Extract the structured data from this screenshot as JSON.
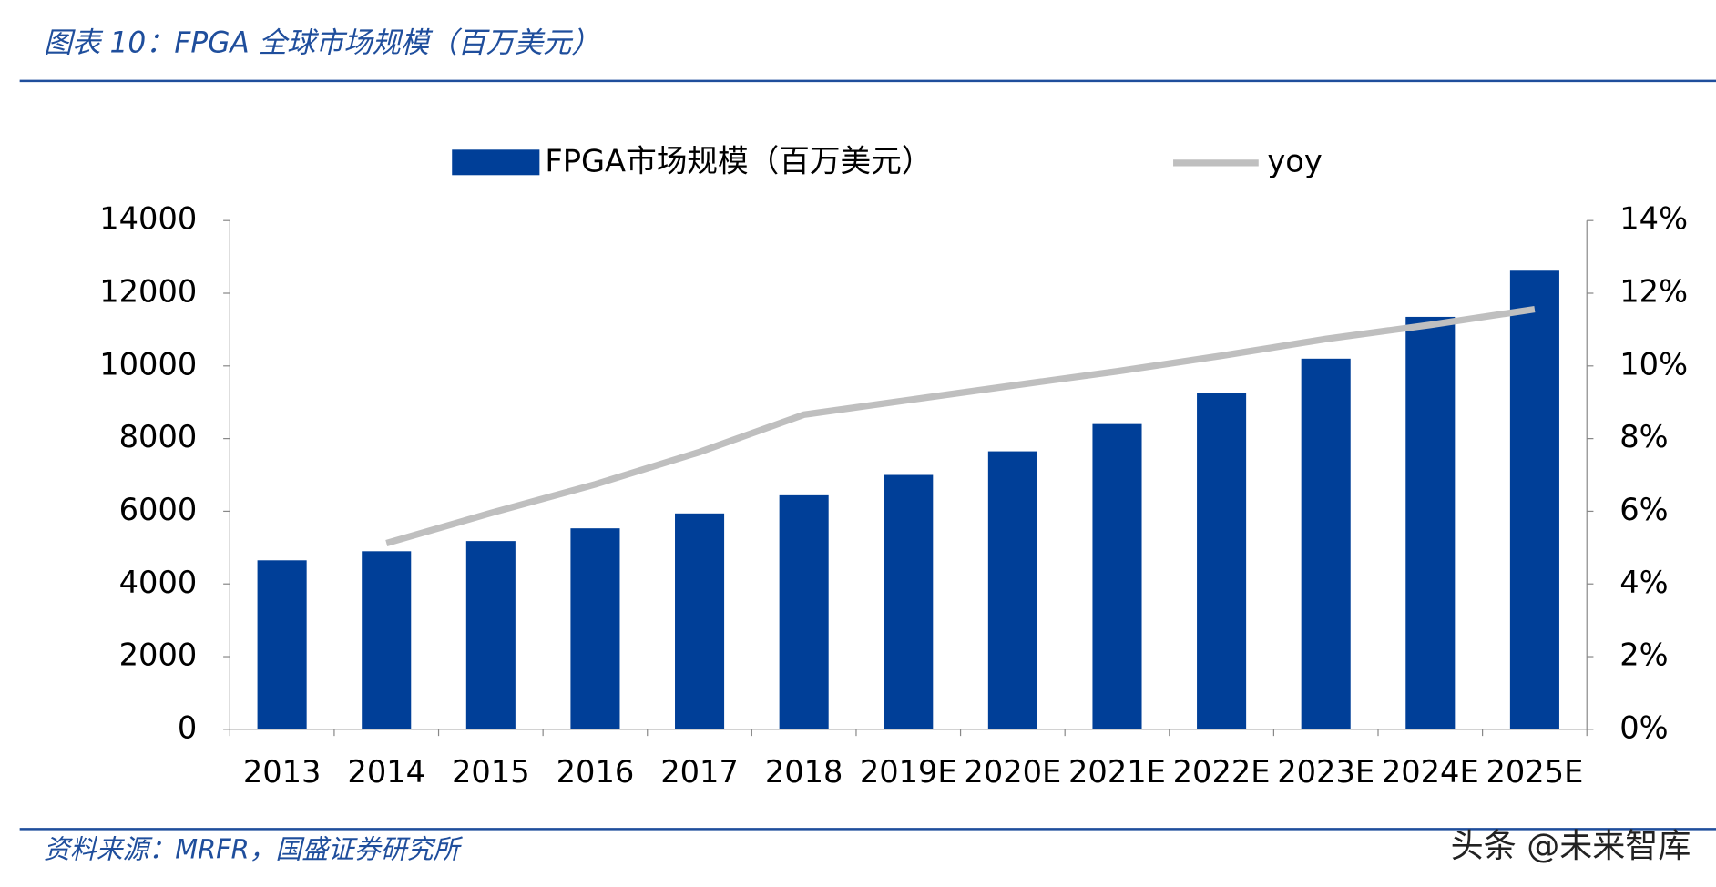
{
  "header": {
    "title": "图表 10：FPGA 全球市场规模（百万美元）"
  },
  "chart_data": {
    "type": "bar",
    "categories": [
      "2013",
      "2014",
      "2015",
      "2016",
      "2017",
      "2018",
      "2019E",
      "2020E",
      "2021E",
      "2022E",
      "2023E",
      "2024E",
      "2025E"
    ],
    "series": [
      {
        "name": "FPGA市场规模（百万美元）",
        "color": "#003f98",
        "type": "bar",
        "values": [
          4650,
          4900,
          5180,
          5530,
          5940,
          6440,
          7000,
          7650,
          8400,
          9250,
          10200,
          11350,
          12620
        ]
      },
      {
        "name": "yoy",
        "color": "#bfbfbf",
        "type": "line",
        "axis": "y2",
        "values": [
          null,
          5.12,
          5.95,
          6.74,
          7.63,
          8.66,
          9.06,
          9.46,
          9.85,
          10.28,
          10.74,
          11.13,
          11.56
        ]
      }
    ],
    "ylim": [
      0,
      14000
    ],
    "yticks": [
      0,
      2000,
      4000,
      6000,
      8000,
      10000,
      12000,
      14000
    ],
    "y2lim": [
      0,
      14
    ],
    "y2ticks": [
      {
        "value": 0,
        "label": "0%"
      },
      {
        "value": 2,
        "label": "2%"
      },
      {
        "value": 4,
        "label": "4%"
      },
      {
        "value": 6,
        "label": "6%"
      },
      {
        "value": 8,
        "label": "8%"
      },
      {
        "value": 10,
        "label": "10%"
      },
      {
        "value": 12,
        "label": "12%"
      },
      {
        "value": 14,
        "label": "14%"
      }
    ],
    "legend": "top"
  },
  "footer": {
    "source": "资料来源：MRFR，国盛证券研究所",
    "watermark": "头条 @未来智库"
  }
}
